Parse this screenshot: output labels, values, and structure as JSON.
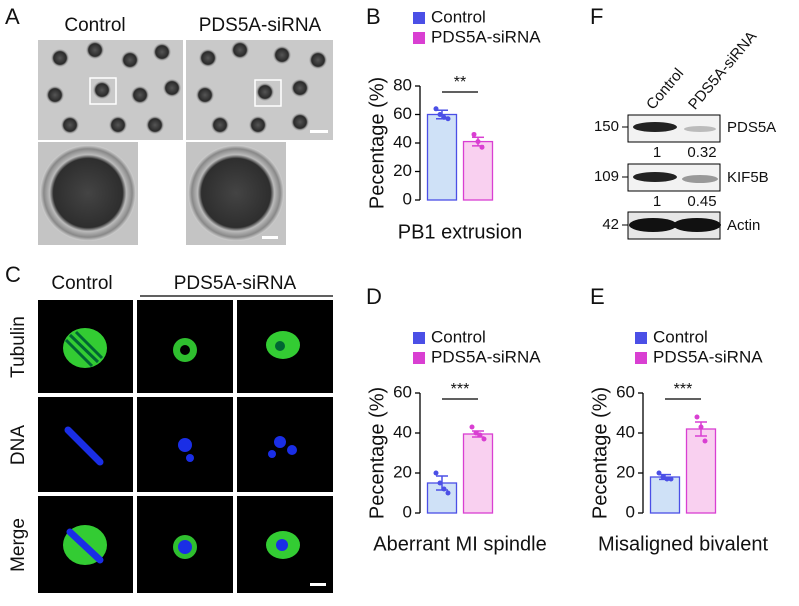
{
  "panel_letters": [
    "A",
    "B",
    "C",
    "D",
    "E",
    "F"
  ],
  "panel_a": {
    "labels": [
      "Control",
      "PDS5A-siRNA"
    ]
  },
  "panel_c": {
    "columns": [
      "Control",
      "PDS5A-siRNA"
    ],
    "rows": [
      "Tubulin",
      "DNA",
      "Merge"
    ]
  },
  "panel_f": {
    "columns": [
      "Control",
      "PDS5A-siRNA"
    ],
    "blots": [
      {
        "marker": "150",
        "protein": "PDS5A",
        "quant": [
          "1",
          "0.32"
        ]
      },
      {
        "marker": "109",
        "protein": "KIF5B",
        "quant": [
          "1",
          "0.45"
        ]
      },
      {
        "marker": "42",
        "protein": "Actin"
      }
    ]
  },
  "chart_data": [
    {
      "type": "bar",
      "ylabel": "Pecentage (%)",
      "xlabel": "PB1 extrusion",
      "significance": "**",
      "categories": [
        null
      ],
      "ylim": [
        0,
        80
      ],
      "yticks": [
        0,
        20,
        40,
        60,
        80
      ],
      "series": [
        {
          "name": "Control",
          "color": "#4b4fe6",
          "fill": "#cfe1f7",
          "values": [
            60
          ],
          "errors": [
            3
          ],
          "points": [
            64,
            60,
            58,
            57
          ]
        },
        {
          "name": "PDS5A-siRNA",
          "color": "#d93fd2",
          "fill": "#f9d0f0",
          "values": [
            41
          ],
          "errors": [
            3
          ],
          "points": [
            46,
            41,
            37
          ]
        }
      ]
    },
    {
      "type": "bar",
      "ylabel": "Pecentage (%)",
      "xlabel": "Aberrant MI spindle",
      "significance": "***",
      "categories": [
        null
      ],
      "ylim": [
        0,
        60
      ],
      "yticks": [
        0,
        20,
        40,
        60
      ],
      "series": [
        {
          "name": "Control",
          "color": "#4b4fe6",
          "fill": "#cfe1f7",
          "values": [
            15
          ],
          "errors": [
            3.5
          ],
          "points": [
            20,
            15,
            12,
            10
          ]
        },
        {
          "name": "PDS5A-siRNA",
          "color": "#d93fd2",
          "fill": "#f9d0f0",
          "values": [
            39.5
          ],
          "errors": [
            1.5
          ],
          "points": [
            43,
            40,
            39,
            37
          ]
        }
      ]
    },
    {
      "type": "bar",
      "ylabel": "Pecentage (%)",
      "xlabel": "Misaligned bivalent",
      "significance": "***",
      "categories": [
        null
      ],
      "ylim": [
        0,
        60
      ],
      "yticks": [
        0,
        20,
        40,
        60
      ],
      "series": [
        {
          "name": "Control",
          "color": "#4b4fe6",
          "fill": "#cfe1f7",
          "values": [
            18
          ],
          "errors": [
            1.2
          ],
          "points": [
            20,
            18,
            17,
            17
          ]
        },
        {
          "name": "PDS5A-siRNA",
          "color": "#d93fd2",
          "fill": "#f9d0f0",
          "values": [
            42
          ],
          "errors": [
            3.5
          ],
          "points": [
            48,
            43,
            36
          ]
        }
      ]
    }
  ]
}
